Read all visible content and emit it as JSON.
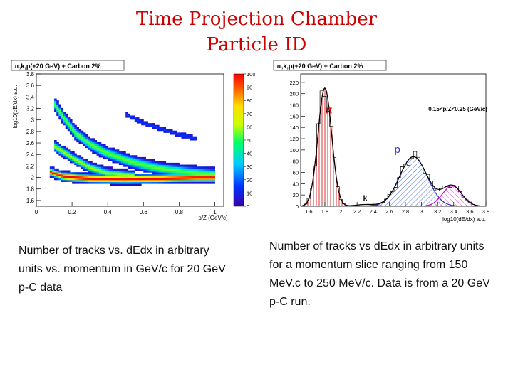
{
  "slide": {
    "title_line1": "Time Projection Chamber",
    "title_line2": "Particle ID",
    "left_caption": "Number of tracks vs. dEdx in arbitrary units vs. momentum in GeV/c for 20 GeV p-C data",
    "right_caption": "Number of tracks vs dEdx in arbitrary units for a momentum slice ranging from 150 MeV.c to 250 MeV/c. Data is from a 20 GeV p-C run.",
    "colors": {
      "title": "#cc0000"
    }
  },
  "chart_data": [
    {
      "type": "heatmap",
      "title": "π,k,p(+20 GeV) + Carbon 2%",
      "xlabel": "p/Z (GeV/c)",
      "ylabel": "log10(dE/dx) a.u.",
      "xlim": [
        0,
        1.05
      ],
      "ylim": [
        1.5,
        3.8
      ],
      "xticks": [
        "0",
        "0.2",
        "0.4",
        "0.6",
        "0.8",
        "1"
      ],
      "yticks": [
        "1.6",
        "1.8",
        "2",
        "2.2",
        "2.4",
        "2.6",
        "2.8",
        "3",
        "3.2",
        "3.4",
        "3.6",
        "3.8"
      ],
      "zlim": [
        0,
        100
      ],
      "colorbar_ticks": [
        "0",
        "10",
        "20",
        "30",
        "40",
        "50",
        "60",
        "70",
        "80",
        "90",
        "100"
      ],
      "bands": [
        {
          "name": "pion",
          "points": [
            [
              0.08,
              2.1
            ],
            [
              0.15,
              2.02
            ],
            [
              0.3,
              1.98
            ],
            [
              0.5,
              1.97
            ],
            [
              0.7,
              1.98
            ],
            [
              0.9,
              2.0
            ],
            [
              1.0,
              2.0
            ]
          ],
          "width": 0.08,
          "peak": 100
        },
        {
          "name": "kaon",
          "points": [
            [
              0.1,
              2.55
            ],
            [
              0.2,
              2.35
            ],
            [
              0.3,
              2.18
            ],
            [
              0.4,
              2.08
            ],
            [
              0.55,
              2.03
            ]
          ],
          "width": 0.09,
          "peak": 60
        },
        {
          "name": "proton",
          "points": [
            [
              0.1,
              3.3
            ],
            [
              0.15,
              3.05
            ],
            [
              0.22,
              2.78
            ],
            [
              0.3,
              2.58
            ],
            [
              0.4,
              2.42
            ],
            [
              0.55,
              2.26
            ],
            [
              0.7,
              2.16
            ],
            [
              0.85,
              2.1
            ],
            [
              1.0,
              2.06
            ]
          ],
          "width": 0.11,
          "peak": 55
        },
        {
          "name": "deuteron",
          "points": [
            [
              0.5,
              3.1
            ],
            [
              0.6,
              2.95
            ],
            [
              0.7,
              2.85
            ],
            [
              0.8,
              2.75
            ],
            [
              0.9,
              2.68
            ]
          ],
          "width": 0.05,
          "peak": 15
        }
      ]
    },
    {
      "type": "line",
      "title": "π,k,p(+20 GeV) + Carbon 2%",
      "annotation": "0.15<p/Z<0.25 (GeV/c)",
      "xlabel": "log10(dE/dx) a.u.",
      "ylabel": "",
      "xlim": [
        1.5,
        3.8
      ],
      "ylim": [
        0,
        235
      ],
      "xticks": [
        "1.6",
        "1.8",
        "2",
        "2.2",
        "2.4",
        "2.6",
        "2.8",
        "3",
        "3.2",
        "3.4",
        "3.6",
        "3.8"
      ],
      "yticks": [
        "0",
        "20",
        "40",
        "60",
        "80",
        "100",
        "120",
        "140",
        "160",
        "180",
        "200",
        "220"
      ],
      "series": [
        {
          "name": "π",
          "label": "π",
          "label_at": [
            1.85,
            165
          ],
          "center": 1.8,
          "sigma": 0.085,
          "amplitude": 210,
          "color": "#cc0000",
          "fill": "hatch-red"
        },
        {
          "name": "k",
          "label": "k",
          "label_at": [
            2.3,
            10
          ],
          "center": 2.3,
          "sigma": 0.12,
          "amplitude": 3,
          "color": "#009900",
          "fill": "none"
        },
        {
          "name": "p",
          "label": "p",
          "label_at": [
            2.7,
            95
          ],
          "center": 2.9,
          "sigma": 0.17,
          "amplitude": 88,
          "color": "#3333cc",
          "fill": "hatch-blue"
        },
        {
          "name": "d",
          "label": "",
          "label_at": [
            3.35,
            0
          ],
          "center": 3.38,
          "sigma": 0.12,
          "amplitude": 36,
          "color": "#cc00cc",
          "fill": "hatch-magenta"
        }
      ]
    }
  ]
}
